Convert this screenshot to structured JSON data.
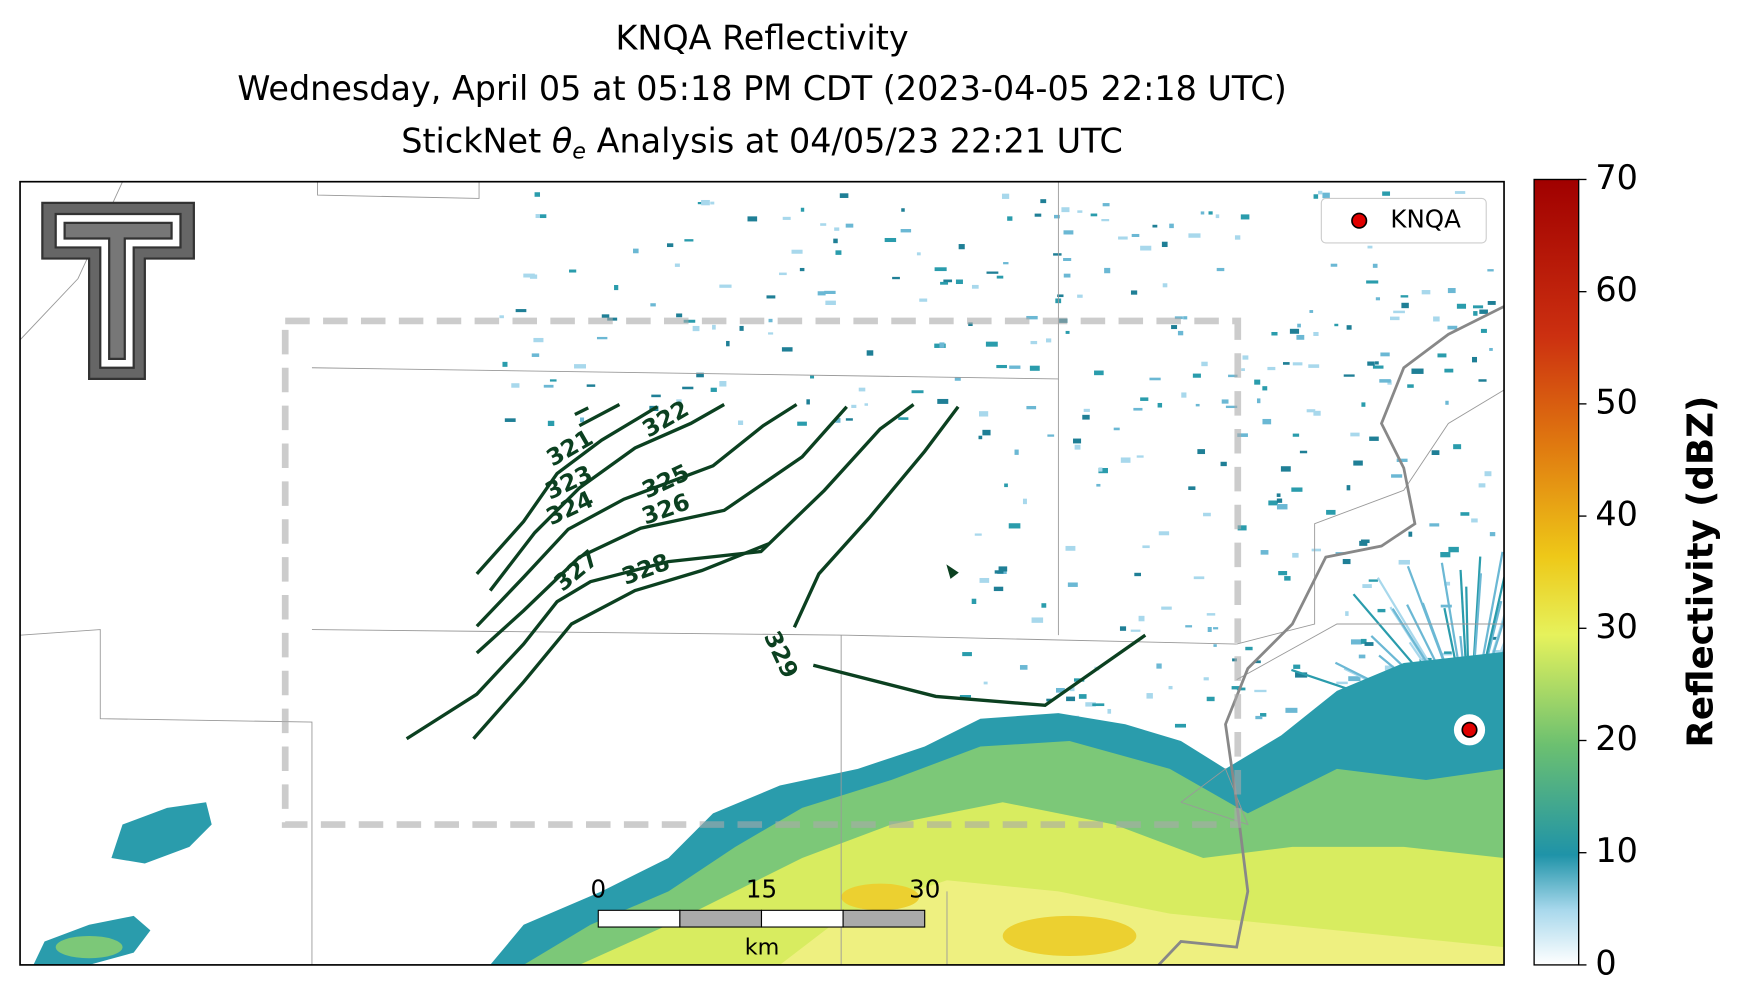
{
  "title": {
    "line1": "KNQA Reflectivity",
    "line2": "Wednesday, April 05 at 05:18 PM CDT (2023-04-05 22:18 UTC)",
    "line3": {
      "prefix": "StickNet",
      "symbol": "θ",
      "subscript": "e",
      "suffix": "Analysis at 04/05/23 22:21 UTC"
    }
  },
  "legend": {
    "label": "KNQA"
  },
  "colorbar": {
    "label": "Reflectivity (dBZ)",
    "lim": [
      0,
      70
    ],
    "ticks": [
      0,
      10,
      20,
      30,
      40,
      50,
      60,
      70
    ]
  },
  "scale_bar": {
    "ticks": [
      0,
      15,
      30
    ],
    "unit": "km"
  },
  "contour_labels": [
    321,
    322,
    323,
    324,
    325,
    326,
    327,
    328,
    329
  ]
}
